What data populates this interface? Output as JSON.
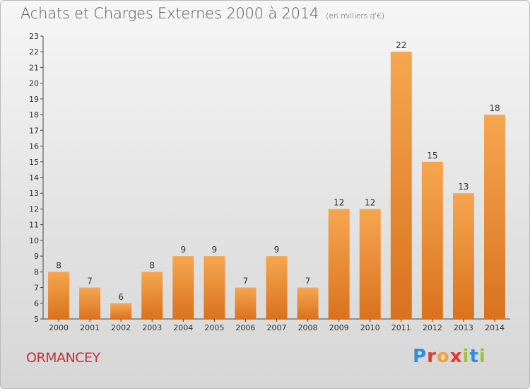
{
  "header": {
    "title": "Achats et Charges Externes 2000 à 2014",
    "subtitle": "(en milliers d'€)"
  },
  "footer": {
    "commune": "ORMANCEY",
    "logo": "Proxiti"
  },
  "colors": {
    "bar_light": "#f6a650",
    "bar_dark": "#d9721e",
    "commune_text": "#c0343a"
  },
  "chart_data": {
    "type": "bar",
    "title": "Achats et Charges Externes 2000 à 2014",
    "subtitle": "(en milliers d'€)",
    "categories": [
      "2000",
      "2001",
      "2002",
      "2003",
      "2004",
      "2005",
      "2006",
      "2007",
      "2008",
      "2009",
      "2010",
      "2011",
      "2012",
      "2013",
      "2014"
    ],
    "values": [
      8,
      7,
      6,
      8,
      9,
      9,
      7,
      9,
      7,
      12,
      12,
      22,
      15,
      13,
      18
    ],
    "ylim": [
      5,
      23
    ],
    "yticks": [
      5,
      6,
      7,
      8,
      9,
      10,
      11,
      12,
      13,
      14,
      15,
      16,
      17,
      18,
      19,
      20,
      21,
      22,
      23
    ],
    "grid": false,
    "data_labels": true
  }
}
